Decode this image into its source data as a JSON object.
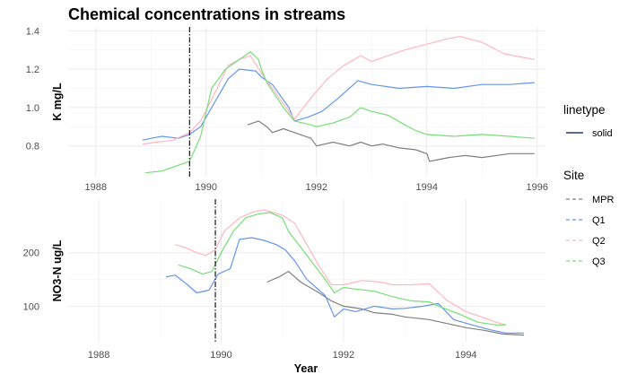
{
  "chart_data": {
    "type": "line",
    "title": "Chemical concentrations in streams",
    "xlabel": "Year",
    "legend": {
      "linetype_title": "linetype",
      "linetype_entries": [
        {
          "name": "solid",
          "color": "#1e3a8a"
        }
      ],
      "site_title": "Site",
      "site_entries": [
        {
          "name": "MPR",
          "color": "#7f7f7f"
        },
        {
          "name": "Q1",
          "color": "#6495ed"
        },
        {
          "name": "Q2",
          "color": "#ffb6c1"
        },
        {
          "name": "Q3",
          "color": "#77dd77"
        }
      ]
    },
    "panels": [
      {
        "ylabel": "K  mg/L",
        "xlim": [
          1987.5,
          1996.15
        ],
        "ylim": [
          0.64,
          1.42
        ],
        "xticks": [
          1988,
          1990,
          1992,
          1994,
          1996
        ],
        "yticks": [
          0.8,
          1.0,
          1.2,
          1.4
        ],
        "vline": 1989.7,
        "series": [
          {
            "name": "MPR",
            "color": "#7f7f7f",
            "points": [
              [
                1990.75,
                0.91
              ],
              [
                1990.95,
                0.93
              ],
              [
                1991.1,
                0.9
              ],
              [
                1991.2,
                0.87
              ],
              [
                1991.4,
                0.89
              ],
              [
                1991.7,
                0.86
              ],
              [
                1991.9,
                0.84
              ],
              [
                1992.0,
                0.8
              ],
              [
                1992.3,
                0.82
              ],
              [
                1992.6,
                0.8
              ],
              [
                1992.8,
                0.82
              ],
              [
                1993.0,
                0.8
              ],
              [
                1993.2,
                0.81
              ],
              [
                1993.5,
                0.79
              ],
              [
                1993.8,
                0.78
              ],
              [
                1994.0,
                0.76
              ],
              [
                1994.05,
                0.72
              ],
              [
                1994.4,
                0.74
              ],
              [
                1994.7,
                0.75
              ],
              [
                1995.0,
                0.74
              ],
              [
                1995.5,
                0.76
              ],
              [
                1995.95,
                0.76
              ]
            ]
          },
          {
            "name": "Q1",
            "color": "#6495ed",
            "points": [
              [
                1988.85,
                0.83
              ],
              [
                1989.0,
                0.84
              ],
              [
                1989.2,
                0.85
              ],
              [
                1989.5,
                0.84
              ],
              [
                1989.7,
                0.86
              ],
              [
                1989.9,
                0.9
              ],
              [
                1990.1,
                1.0
              ],
              [
                1990.4,
                1.15
              ],
              [
                1990.6,
                1.2
              ],
              [
                1990.9,
                1.19
              ],
              [
                1991.0,
                1.16
              ],
              [
                1991.2,
                1.12
              ],
              [
                1991.5,
                1.0
              ],
              [
                1991.6,
                0.93
              ],
              [
                1991.85,
                0.95
              ],
              [
                1992.1,
                0.98
              ],
              [
                1992.4,
                1.05
              ],
              [
                1992.75,
                1.14
              ],
              [
                1993.0,
                1.12
              ],
              [
                1993.5,
                1.1
              ],
              [
                1994.0,
                1.11
              ],
              [
                1994.5,
                1.1
              ],
              [
                1995.0,
                1.12
              ],
              [
                1995.5,
                1.12
              ],
              [
                1995.95,
                1.13
              ]
            ]
          },
          {
            "name": "Q2",
            "color": "#ffb6c1",
            "points": [
              [
                1988.85,
                0.81
              ],
              [
                1989.1,
                0.82
              ],
              [
                1989.4,
                0.83
              ],
              [
                1989.7,
                0.87
              ],
              [
                1989.9,
                0.93
              ],
              [
                1990.2,
                1.1
              ],
              [
                1990.4,
                1.22
              ],
              [
                1990.6,
                1.25
              ],
              [
                1990.8,
                1.27
              ],
              [
                1991.0,
                1.18
              ],
              [
                1991.2,
                1.1
              ],
              [
                1991.5,
                0.98
              ],
              [
                1991.6,
                0.94
              ],
              [
                1991.9,
                1.05
              ],
              [
                1992.2,
                1.15
              ],
              [
                1992.5,
                1.22
              ],
              [
                1992.8,
                1.27
              ],
              [
                1993.0,
                1.24
              ],
              [
                1993.3,
                1.27
              ],
              [
                1993.6,
                1.3
              ],
              [
                1994.0,
                1.33
              ],
              [
                1994.4,
                1.36
              ],
              [
                1994.6,
                1.37
              ],
              [
                1995.0,
                1.34
              ],
              [
                1995.4,
                1.28
              ],
              [
                1995.95,
                1.25
              ]
            ]
          },
          {
            "name": "Q3",
            "color": "#77dd77",
            "points": [
              [
                1988.9,
                0.66
              ],
              [
                1989.2,
                0.67
              ],
              [
                1989.5,
                0.7
              ],
              [
                1989.7,
                0.72
              ],
              [
                1989.9,
                0.85
              ],
              [
                1990.1,
                1.1
              ],
              [
                1990.35,
                1.2
              ],
              [
                1990.6,
                1.25
              ],
              [
                1990.8,
                1.29
              ],
              [
                1990.95,
                1.25
              ],
              [
                1991.0,
                1.2
              ],
              [
                1991.1,
                1.13
              ],
              [
                1991.4,
                1.0
              ],
              [
                1991.6,
                0.93
              ],
              [
                1991.9,
                0.91
              ],
              [
                1992.0,
                0.9
              ],
              [
                1992.3,
                0.92
              ],
              [
                1992.6,
                0.95
              ],
              [
                1992.8,
                1.0
              ],
              [
                1993.0,
                0.98
              ],
              [
                1993.3,
                0.96
              ],
              [
                1993.6,
                0.91
              ],
              [
                1993.8,
                0.88
              ],
              [
                1994.0,
                0.86
              ],
              [
                1994.5,
                0.85
              ],
              [
                1995.0,
                0.86
              ],
              [
                1995.5,
                0.85
              ],
              [
                1995.95,
                0.84
              ]
            ]
          }
        ]
      },
      {
        "ylabel": "NO3-N ug/L",
        "xlim": [
          1987.5,
          1995.3
        ],
        "ylim": [
          32,
          300
        ],
        "xticks": [
          1988,
          1990,
          1992,
          1994
        ],
        "yticks": [
          100,
          200
        ],
        "vline": 1989.7,
        "series": [
          {
            "name": "MPR",
            "color": "#7f7f7f",
            "points": [
              [
                1990.75,
                145
              ],
              [
                1990.95,
                155
              ],
              [
                1991.1,
                165
              ],
              [
                1991.3,
                145
              ],
              [
                1991.6,
                125
              ],
              [
                1991.8,
                110
              ],
              [
                1992.0,
                100
              ],
              [
                1992.3,
                95
              ],
              [
                1992.5,
                88
              ],
              [
                1992.8,
                85
              ],
              [
                1993.0,
                80
              ],
              [
                1993.4,
                75
              ],
              [
                1993.8,
                65
              ],
              [
                1994.0,
                60
              ],
              [
                1994.3,
                55
              ],
              [
                1994.6,
                48
              ],
              [
                1994.95,
                46
              ]
            ]
          },
          {
            "name": "Q1",
            "color": "#6495ed",
            "points": [
              [
                1989.1,
                155
              ],
              [
                1989.25,
                158
              ],
              [
                1989.45,
                140
              ],
              [
                1989.6,
                125
              ],
              [
                1989.8,
                130
              ],
              [
                1989.95,
                160
              ],
              [
                1990.15,
                170
              ],
              [
                1990.3,
                225
              ],
              [
                1990.5,
                228
              ],
              [
                1990.7,
                223
              ],
              [
                1990.9,
                215
              ],
              [
                1991.05,
                205
              ],
              [
                1991.2,
                185
              ],
              [
                1991.4,
                150
              ],
              [
                1991.7,
                120
              ],
              [
                1991.85,
                80
              ],
              [
                1992.0,
                95
              ],
              [
                1992.2,
                90
              ],
              [
                1992.5,
                100
              ],
              [
                1992.8,
                95
              ],
              [
                1993.0,
                96
              ],
              [
                1993.3,
                100
              ],
              [
                1993.55,
                105
              ],
              [
                1993.8,
                75
              ],
              [
                1994.1,
                65
              ],
              [
                1994.4,
                56
              ],
              [
                1994.65,
                50
              ],
              [
                1994.95,
                50
              ]
            ]
          },
          {
            "name": "Q2",
            "color": "#ffb6c1",
            "points": [
              [
                1989.25,
                215
              ],
              [
                1989.4,
                210
              ],
              [
                1989.6,
                200
              ],
              [
                1989.75,
                195
              ],
              [
                1989.9,
                205
              ],
              [
                1990.05,
                240
              ],
              [
                1990.3,
                265
              ],
              [
                1990.5,
                275
              ],
              [
                1990.7,
                280
              ],
              [
                1990.85,
                275
              ],
              [
                1991.0,
                270
              ],
              [
                1991.2,
                255
              ],
              [
                1991.4,
                215
              ],
              [
                1991.6,
                175
              ],
              [
                1991.8,
                140
              ],
              [
                1992.0,
                140
              ],
              [
                1992.3,
                148
              ],
              [
                1992.6,
                145
              ],
              [
                1992.8,
                140
              ],
              [
                1993.1,
                140
              ],
              [
                1993.4,
                142
              ],
              [
                1993.7,
                110
              ],
              [
                1994.0,
                90
              ],
              [
                1994.3,
                78
              ],
              [
                1994.5,
                70
              ],
              [
                1994.65,
                65
              ]
            ]
          },
          {
            "name": "Q3",
            "color": "#77dd77",
            "points": [
              [
                1989.3,
                177
              ],
              [
                1989.5,
                170
              ],
              [
                1989.7,
                160
              ],
              [
                1989.85,
                165
              ],
              [
                1990.0,
                200
              ],
              [
                1990.2,
                240
              ],
              [
                1990.4,
                265
              ],
              [
                1990.6,
                272
              ],
              [
                1990.8,
                275
              ],
              [
                1991.0,
                265
              ],
              [
                1991.1,
                240
              ],
              [
                1991.3,
                210
              ],
              [
                1991.5,
                180
              ],
              [
                1991.7,
                150
              ],
              [
                1991.85,
                125
              ],
              [
                1992.0,
                135
              ],
              [
                1992.2,
                132
              ],
              [
                1992.5,
                128
              ],
              [
                1992.8,
                118
              ],
              [
                1993.1,
                110
              ],
              [
                1993.4,
                108
              ],
              [
                1993.6,
                98
              ],
              [
                1993.9,
                85
              ],
              [
                1994.2,
                70
              ],
              [
                1994.5,
                65
              ],
              [
                1994.65,
                65
              ]
            ]
          }
        ]
      }
    ]
  }
}
